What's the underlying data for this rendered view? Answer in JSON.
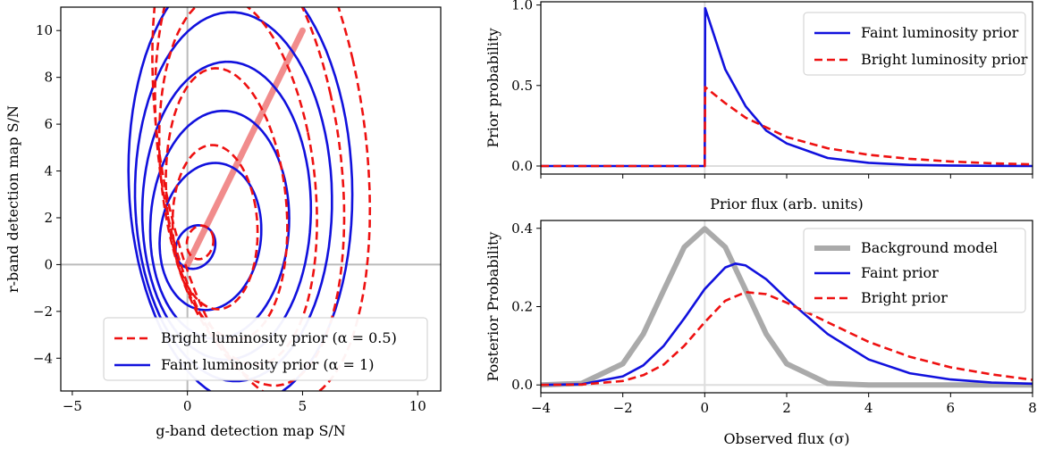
{
  "chart_data": [
    {
      "type": "line",
      "subtype": "contour",
      "xlabel": "g-band detection map S/N",
      "ylabel": "r-band detection map S/N",
      "xlim": [
        -5.5,
        11
      ],
      "ylim": [
        -5.4,
        11
      ],
      "xticks": [
        -5,
        0,
        5,
        10
      ],
      "yticks": [
        -4,
        -2,
        0,
        2,
        4,
        6,
        8,
        10
      ],
      "xtick_labels": [
        "−5",
        "0",
        "5",
        "10"
      ],
      "ytick_labels": [
        "−4",
        "−2",
        "0",
        "2",
        "4",
        "6",
        "8",
        "10"
      ],
      "reference_lines": {
        "x": 0,
        "y": 0,
        "color": "#bbbbbb"
      },
      "ridge_line": {
        "from": [
          0,
          0
        ],
        "to": [
          5,
          10
        ],
        "color": "#f08080"
      },
      "legend": {
        "position": "bottom-right",
        "entries": [
          {
            "label": "Bright luminosity prior (α = 0.5)",
            "color": "#ee1111",
            "style": "dashed"
          },
          {
            "label": "Faint luminosity prior (α = 1)",
            "color": "#1111dd",
            "style": "solid"
          }
        ]
      },
      "series": [
        {
          "name": "Faint luminosity prior (α = 1)",
          "color": "#1111dd",
          "style": "solid",
          "contours": [
            {
              "center": [
                0.35,
                0.75
              ],
              "rx": 0.9,
              "ry": 0.9,
              "tilt": 0.3
            },
            {
              "center": [
                1.0,
                1.2
              ],
              "rx": 2.4,
              "ry": 3.0,
              "tilt": 0.45
            },
            {
              "center": [
                1.4,
                1.7
              ],
              "rx": 3.4,
              "ry": 4.6,
              "tilt": 0.55
            },
            {
              "center": [
                1.7,
                2.3
              ],
              "rx": 4.2,
              "ry": 6.0,
              "tilt": 0.6
            },
            {
              "center": [
                2.0,
                2.9
              ],
              "rx": 5.0,
              "ry": 7.4,
              "tilt": 0.65
            },
            {
              "center": [
                2.3,
                3.5
              ],
              "rx": 5.8,
              "ry": 8.8,
              "tilt": 0.7
            }
          ]
        },
        {
          "name": "Bright luminosity prior (α = 0.5)",
          "color": "#ee1111",
          "style": "dashed",
          "contours": [
            {
              "center": [
                0.55,
                0.95
              ],
              "rx": 0.6,
              "ry": 0.7,
              "tilt": 0.3
            },
            {
              "center": [
                1.2,
                1.6
              ],
              "rx": 2.0,
              "ry": 3.4,
              "tilt": 0.5
            },
            {
              "center": [
                1.7,
                2.6
              ],
              "rx": 2.9,
              "ry": 5.6,
              "tilt": 0.6
            },
            {
              "center": [
                2.2,
                3.6
              ],
              "rx": 3.8,
              "ry": 7.6,
              "tilt": 0.65
            },
            {
              "center": [
                2.7,
                4.6
              ],
              "rx": 4.6,
              "ry": 9.4,
              "tilt": 0.7
            },
            {
              "center": [
                3.2,
                5.6
              ],
              "rx": 5.3,
              "ry": 11.0,
              "tilt": 0.72
            }
          ]
        }
      ]
    },
    {
      "type": "line",
      "ylabel": "Prior probability",
      "xlabel": "Prior flux (arb. units)",
      "xlim": [
        -4,
        8
      ],
      "ylim": [
        -0.05,
        1.02
      ],
      "yticks": [
        0,
        0.5,
        1
      ],
      "ytick_labels": [
        "0.0",
        "0.5",
        "1.0"
      ],
      "legend": {
        "position": "top-right",
        "entries": [
          {
            "label": "Faint luminosity prior",
            "color": "#1111dd",
            "style": "solid"
          },
          {
            "label": "Bright luminosity prior",
            "color": "#ee1111",
            "style": "dashed"
          }
        ]
      },
      "series": [
        {
          "name": "Faint luminosity prior",
          "color": "#1111dd",
          "style": "solid",
          "x": [
            -4,
            0,
            0.01,
            0.5,
            1,
            1.5,
            2,
            3,
            4,
            5,
            6,
            7,
            8
          ],
          "y": [
            0,
            0,
            0.98,
            0.6,
            0.37,
            0.22,
            0.14,
            0.05,
            0.02,
            0.007,
            0.003,
            0.001,
            0
          ]
        },
        {
          "name": "Bright luminosity prior",
          "color": "#ee1111",
          "style": "dashed",
          "x": [
            -4,
            0,
            0.01,
            0.5,
            1,
            1.5,
            2,
            3,
            4,
            5,
            6,
            7,
            8
          ],
          "y": [
            0,
            0,
            0.49,
            0.39,
            0.3,
            0.24,
            0.18,
            0.11,
            0.07,
            0.045,
            0.028,
            0.017,
            0.01
          ]
        }
      ]
    },
    {
      "type": "line",
      "ylabel": "Posterior Probability",
      "xlabel": "Observed flux (σ)",
      "xlim": [
        -4,
        8
      ],
      "ylim": [
        -0.02,
        0.42
      ],
      "xticks": [
        -4,
        -2,
        0,
        2,
        4,
        6,
        8
      ],
      "xtick_labels": [
        "−4",
        "−2",
        "0",
        "2",
        "4",
        "6",
        "8"
      ],
      "yticks": [
        0,
        0.2,
        0.4
      ],
      "ytick_labels": [
        "0.0",
        "0.2",
        "0.4"
      ],
      "legend": {
        "position": "top-right",
        "entries": [
          {
            "label": "Background model",
            "color": "#aaaaaa",
            "style": "solid-thick"
          },
          {
            "label": "Faint prior",
            "color": "#1111dd",
            "style": "solid"
          },
          {
            "label": "Bright prior",
            "color": "#ee1111",
            "style": "dashed"
          }
        ]
      },
      "series": [
        {
          "name": "Background model",
          "color": "#aaaaaa",
          "style": "solid-thick",
          "x": [
            -4,
            -3,
            -2,
            -1.5,
            -1,
            -0.5,
            0,
            0.5,
            1,
            1.5,
            2,
            3,
            4,
            8
          ],
          "y": [
            0,
            0.004,
            0.054,
            0.13,
            0.242,
            0.352,
            0.399,
            0.352,
            0.242,
            0.13,
            0.054,
            0.004,
            0,
            0
          ]
        },
        {
          "name": "Faint prior",
          "color": "#1111dd",
          "style": "solid",
          "x": [
            -4,
            -3,
            -2,
            -1.5,
            -1,
            -0.5,
            0,
            0.5,
            0.75,
            1,
            1.5,
            2,
            3,
            4,
            5,
            6,
            7,
            8
          ],
          "y": [
            0,
            0.002,
            0.022,
            0.05,
            0.1,
            0.17,
            0.245,
            0.3,
            0.31,
            0.305,
            0.27,
            0.22,
            0.13,
            0.065,
            0.03,
            0.014,
            0.006,
            0.003
          ]
        },
        {
          "name": "Bright prior",
          "color": "#ee1111",
          "style": "dashed",
          "x": [
            -4,
            -3,
            -2,
            -1.5,
            -1,
            -0.5,
            0,
            0.5,
            1,
            1.5,
            2,
            3,
            4,
            5,
            6,
            7,
            8
          ],
          "y": [
            0,
            0.001,
            0.01,
            0.025,
            0.052,
            0.1,
            0.16,
            0.215,
            0.237,
            0.232,
            0.21,
            0.16,
            0.11,
            0.072,
            0.045,
            0.027,
            0.013
          ]
        }
      ]
    }
  ]
}
